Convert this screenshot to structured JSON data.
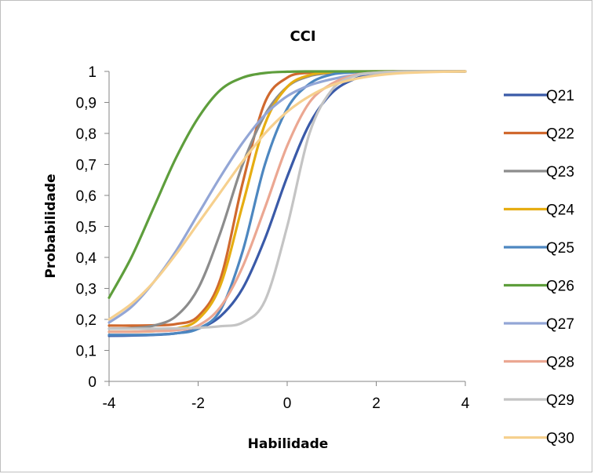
{
  "chart_data": {
    "type": "line",
    "title": "CCI",
    "xlabel": "Habilidade",
    "ylabel": "Probabilidade",
    "xlim": [
      -4,
      4
    ],
    "ylim": [
      0,
      1
    ],
    "x_ticks": [
      -4,
      -2,
      0,
      2,
      4
    ],
    "x_tick_labels": [
      "-4",
      "-2",
      "0",
      "2",
      "4"
    ],
    "y_ticks": [
      0,
      0.1,
      0.2,
      0.3,
      0.4,
      0.5,
      0.6,
      0.7,
      0.8,
      0.9,
      1
    ],
    "y_tick_labels": [
      "0",
      "0,1",
      "0,2",
      "0,3",
      "0,4",
      "0,5",
      "0,6",
      "0,7",
      "0,8",
      "0,9",
      "1"
    ],
    "grid": false,
    "legend_position": "right",
    "x": [
      -4,
      -3.5,
      -3,
      -2.5,
      -2,
      -1.5,
      -1,
      -0.5,
      0,
      0.5,
      1,
      1.5,
      2,
      2.5,
      3,
      3.5,
      4
    ],
    "series": [
      {
        "name": "Q21",
        "color": "#3a5aa8",
        "values": [
          0.147,
          0.148,
          0.15,
          0.155,
          0.17,
          0.21,
          0.3,
          0.46,
          0.66,
          0.83,
          0.93,
          0.975,
          0.992,
          0.997,
          0.999,
          1.0,
          1.0
        ]
      },
      {
        "name": "Q22",
        "color": "#d0692e",
        "values": [
          0.18,
          0.18,
          0.181,
          0.185,
          0.21,
          0.33,
          0.64,
          0.9,
          0.98,
          0.996,
          0.999,
          1.0,
          1.0,
          1.0,
          1.0,
          1.0,
          1.0
        ]
      },
      {
        "name": "Q23",
        "color": "#8c8c8c",
        "values": [
          0.17,
          0.172,
          0.18,
          0.21,
          0.3,
          0.48,
          0.7,
          0.86,
          0.95,
          0.985,
          0.995,
          0.999,
          1.0,
          1.0,
          1.0,
          1.0,
          1.0
        ]
      },
      {
        "name": "Q24",
        "color": "#e6ad12",
        "values": [
          0.16,
          0.16,
          0.162,
          0.17,
          0.2,
          0.31,
          0.57,
          0.83,
          0.95,
          0.988,
          0.997,
          0.999,
          1.0,
          1.0,
          1.0,
          1.0,
          1.0
        ]
      },
      {
        "name": "Q25",
        "color": "#4d87c0",
        "values": [
          0.15,
          0.15,
          0.151,
          0.155,
          0.17,
          0.23,
          0.42,
          0.7,
          0.88,
          0.96,
          0.99,
          0.997,
          0.999,
          1.0,
          1.0,
          1.0,
          1.0
        ]
      },
      {
        "name": "Q26",
        "color": "#5e9e3c",
        "values": [
          0.27,
          0.4,
          0.56,
          0.72,
          0.85,
          0.94,
          0.98,
          0.995,
          0.999,
          1.0,
          1.0,
          1.0,
          1.0,
          1.0,
          1.0,
          1.0,
          1.0
        ]
      },
      {
        "name": "Q27",
        "color": "#93a6d6",
        "values": [
          0.19,
          0.24,
          0.32,
          0.42,
          0.54,
          0.66,
          0.77,
          0.86,
          0.92,
          0.955,
          0.975,
          0.988,
          0.994,
          0.997,
          0.999,
          1.0,
          1.0
        ]
      },
      {
        "name": "Q28",
        "color": "#eba792",
        "values": [
          0.16,
          0.16,
          0.162,
          0.165,
          0.18,
          0.24,
          0.37,
          0.56,
          0.76,
          0.9,
          0.96,
          0.988,
          0.996,
          0.999,
          1.0,
          1.0,
          1.0
        ]
      },
      {
        "name": "Q29",
        "color": "#c4c4c4",
        "values": [
          0.17,
          0.17,
          0.17,
          0.171,
          0.173,
          0.178,
          0.19,
          0.26,
          0.5,
          0.8,
          0.94,
          0.985,
          0.996,
          0.999,
          1.0,
          1.0,
          1.0
        ]
      },
      {
        "name": "Q30",
        "color": "#f6d08e",
        "values": [
          0.2,
          0.25,
          0.32,
          0.41,
          0.51,
          0.61,
          0.71,
          0.8,
          0.87,
          0.92,
          0.955,
          0.975,
          0.987,
          0.994,
          0.997,
          0.999,
          1.0
        ]
      }
    ]
  }
}
